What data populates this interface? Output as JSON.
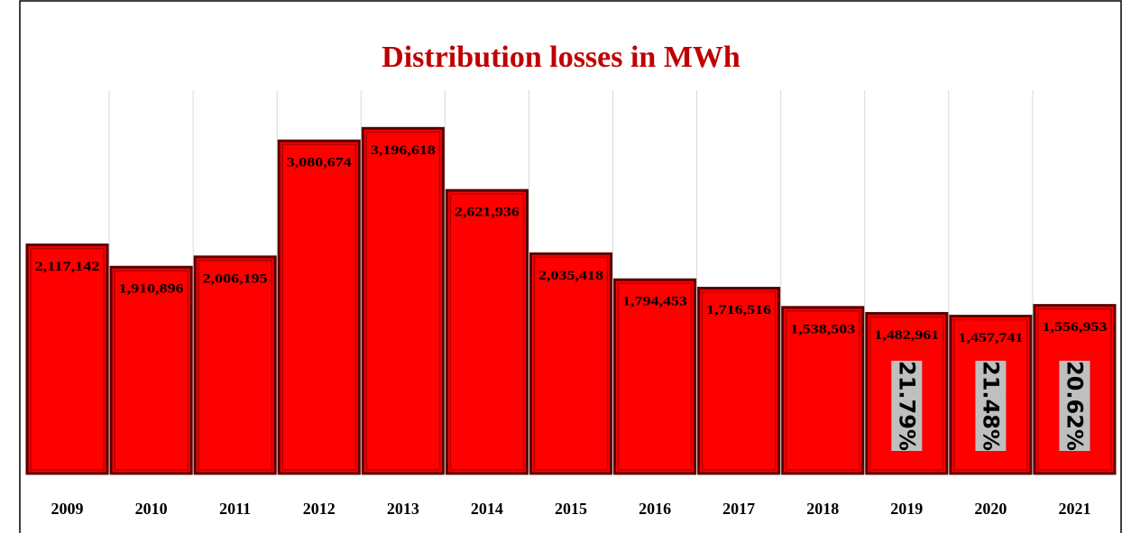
{
  "chart_data": {
    "type": "bar",
    "title": "Distribution losses in MWh",
    "categories": [
      "2009",
      "2010",
      "2011",
      "2012",
      "2013",
      "2014",
      "2015",
      "2016",
      "2017",
      "2018",
      "2019",
      "2020",
      "2021"
    ],
    "values": [
      2117142,
      1910896,
      2006195,
      3080674,
      3196618,
      2621936,
      2035418,
      1794453,
      1716516,
      1538503,
      1482961,
      1457741,
      1556953
    ],
    "value_labels": [
      "2,117,142",
      "1,910,896",
      "2,006,195",
      "3,080,674",
      "3,196,618",
      "2,621,936",
      "2,035,418",
      "1,794,453",
      "1,716,516",
      "1,538,503",
      "1,482,961",
      "1,457,741",
      "1,556,953"
    ],
    "color": "#ff0000",
    "ylim": [
      0,
      3500000
    ],
    "annotations": [
      {
        "category": "2019",
        "label": "21.79%"
      },
      {
        "category": "2020",
        "label": "21.48%"
      },
      {
        "category": "2021",
        "label": "20.62%"
      }
    ]
  }
}
